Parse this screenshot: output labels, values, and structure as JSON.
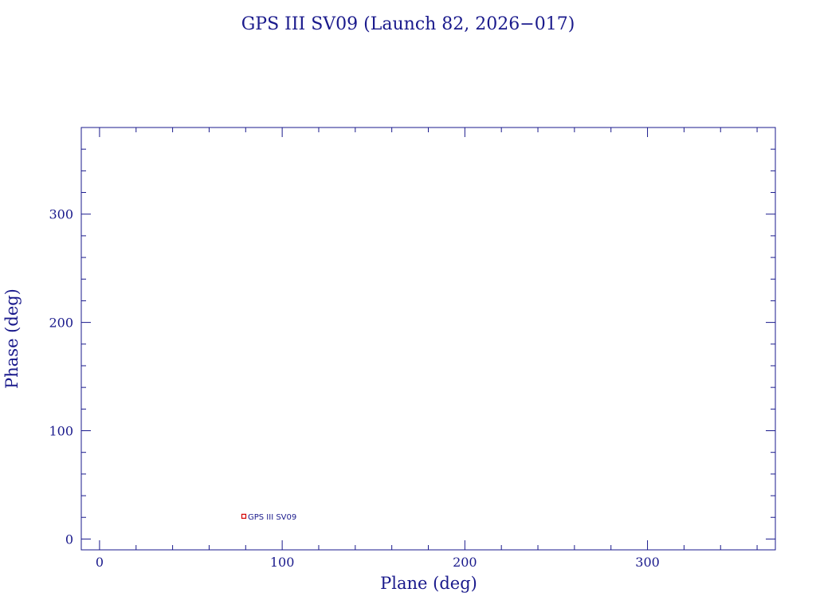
{
  "chart_data": {
    "type": "scatter",
    "title": "GPS III SV09 (Launch 82, 2026−017)",
    "xlabel": "Plane (deg)",
    "ylabel": "Phase (deg)",
    "xlim": [
      -10,
      370
    ],
    "ylim": [
      -10,
      380
    ],
    "xticks": [
      0,
      100,
      200,
      300
    ],
    "yticks": [
      0,
      100,
      200,
      300
    ],
    "xtick_labels": [
      "0",
      "100",
      "200",
      "300"
    ],
    "ytick_labels": [
      "0",
      "100",
      "200",
      "300"
    ],
    "x_minor_step": 20,
    "y_minor_step": 20,
    "grid": false,
    "points": [
      {
        "x": 79,
        "y": 21,
        "label": "GPS III SV09"
      }
    ],
    "colors": {
      "axes": "#1a1a8c",
      "text": "#1a1a8c",
      "marker": "#d40000",
      "background": "#ffffff"
    }
  }
}
